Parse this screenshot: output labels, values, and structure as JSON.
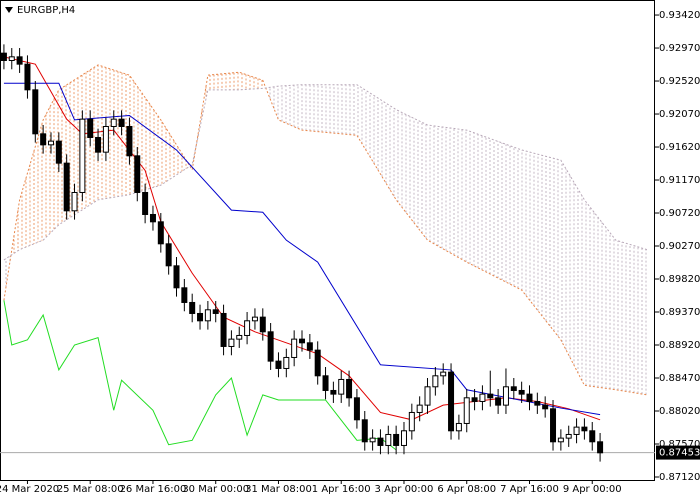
{
  "chart_data": {
    "type": "candlestick",
    "title": "EURGBP,H4",
    "xlim": [
      -0.5,
      83
    ],
    "ylim": [
      0.87079,
      0.93625
    ],
    "xticks": [
      {
        "value": 3,
        "label": "24 Mar 2020"
      },
      {
        "value": 11,
        "label": "25 Mar 08:00"
      },
      {
        "value": 19,
        "label": "26 Mar 16:00"
      },
      {
        "value": 27,
        "label": "30 Mar 00:00"
      },
      {
        "value": 35,
        "label": "31 Mar 08:00"
      },
      {
        "value": 43,
        "label": "1 Apr 16:00"
      },
      {
        "value": 51,
        "label": "3 Apr 00:00"
      },
      {
        "value": 59,
        "label": "6 Apr 08:00"
      },
      {
        "value": 67,
        "label": "7 Apr 16:00"
      },
      {
        "value": 75,
        "label": "9 Apr 00:00"
      }
    ],
    "yticks": [
      {
        "value": 0.9342,
        "label": "0.93420"
      },
      {
        "value": 0.9297,
        "label": "0.92970"
      },
      {
        "value": 0.9252,
        "label": "0.92520"
      },
      {
        "value": 0.9207,
        "label": "0.92070"
      },
      {
        "value": 0.9162,
        "label": "0.91620"
      },
      {
        "value": 0.9117,
        "label": "0.91170"
      },
      {
        "value": 0.9072,
        "label": "0.90720"
      },
      {
        "value": 0.9027,
        "label": "0.90270"
      },
      {
        "value": 0.8982,
        "label": "0.89820"
      },
      {
        "value": 0.8937,
        "label": "0.89370"
      },
      {
        "value": 0.8892,
        "label": "0.88920"
      },
      {
        "value": 0.8847,
        "label": "0.88470"
      },
      {
        "value": 0.8802,
        "label": "0.88020"
      },
      {
        "value": 0.8757,
        "label": "0.87570"
      },
      {
        "value": 0.8712,
        "label": "0.87120"
      }
    ],
    "last_price": 0.87453,
    "bull_color": "#ffffff",
    "bear_color": "#000000",
    "open": [
      0.929,
      0.928,
      0.9285,
      0.9275,
      0.924,
      0.918,
      0.9165,
      0.917,
      0.914,
      0.9075,
      0.91,
      0.92,
      0.9175,
      0.9155,
      0.919,
      0.92,
      0.919,
      0.915,
      0.91,
      0.907,
      0.906,
      0.903,
      0.9,
      0.897,
      0.895,
      0.8935,
      0.8925,
      0.894,
      0.8935,
      0.889,
      0.89,
      0.8905,
      0.8925,
      0.893,
      0.891,
      0.887,
      0.886,
      0.8875,
      0.89,
      0.8895,
      0.8885,
      0.885,
      0.883,
      0.8825,
      0.8845,
      0.882,
      0.879,
      0.876,
      0.8765,
      0.8755,
      0.877,
      0.8755,
      0.8775,
      0.88,
      0.881,
      0.8835,
      0.885,
      0.8855,
      0.8775,
      0.8785,
      0.882,
      0.8815,
      0.8825,
      0.882,
      0.881,
      0.8835,
      0.883,
      0.8825,
      0.8815,
      0.881,
      0.8805,
      0.876,
      0.8765,
      0.877,
      0.878,
      0.8775,
      0.876
    ],
    "high": [
      0.9302,
      0.9297,
      0.9297,
      0.9287,
      0.9252,
      0.9192,
      0.9182,
      0.9182,
      0.9152,
      0.9112,
      0.9212,
      0.9212,
      0.9187,
      0.9202,
      0.9212,
      0.9212,
      0.9202,
      0.9162,
      0.9112,
      0.9082,
      0.9072,
      0.9042,
      0.9012,
      0.8982,
      0.8962,
      0.8947,
      0.8952,
      0.8952,
      0.8947,
      0.8912,
      0.8917,
      0.8937,
      0.8942,
      0.8942,
      0.8922,
      0.8882,
      0.8887,
      0.8912,
      0.8912,
      0.8907,
      0.8897,
      0.8862,
      0.8842,
      0.8857,
      0.8857,
      0.8832,
      0.8802,
      0.8777,
      0.8777,
      0.8782,
      0.8782,
      0.8787,
      0.8812,
      0.8822,
      0.8847,
      0.8862,
      0.8867,
      0.8867,
      0.8797,
      0.8832,
      0.8832,
      0.8837,
      0.8857,
      0.8832,
      0.886,
      0.8847,
      0.8842,
      0.8837,
      0.8827,
      0.8822,
      0.8817,
      0.8777,
      0.8782,
      0.8792,
      0.8792,
      0.8787,
      0.8772
    ],
    "low": [
      0.9268,
      0.9268,
      0.9263,
      0.9228,
      0.9168,
      0.9153,
      0.9153,
      0.9128,
      0.9063,
      0.9063,
      0.9088,
      0.9163,
      0.9143,
      0.9143,
      0.9178,
      0.9178,
      0.9138,
      0.9088,
      0.9058,
      0.9048,
      0.9018,
      0.8988,
      0.8958,
      0.8938,
      0.8923,
      0.8913,
      0.8913,
      0.8923,
      0.8878,
      0.8878,
      0.8888,
      0.8893,
      0.8913,
      0.8898,
      0.8858,
      0.8848,
      0.8848,
      0.8863,
      0.8883,
      0.8873,
      0.8838,
      0.8818,
      0.8813,
      0.8813,
      0.8808,
      0.8778,
      0.8748,
      0.8748,
      0.8743,
      0.8743,
      0.8743,
      0.8743,
      0.8763,
      0.8788,
      0.8798,
      0.8823,
      0.8838,
      0.8763,
      0.8763,
      0.8773,
      0.8803,
      0.8803,
      0.8808,
      0.8798,
      0.8798,
      0.8818,
      0.8813,
      0.8803,
      0.8798,
      0.8793,
      0.8748,
      0.8748,
      0.8753,
      0.8758,
      0.8763,
      0.8748,
      0.8733
    ],
    "close": [
      0.928,
      0.9285,
      0.9275,
      0.924,
      0.918,
      0.9165,
      0.917,
      0.914,
      0.9075,
      0.91,
      0.92,
      0.9175,
      0.9155,
      0.919,
      0.92,
      0.919,
      0.915,
      0.91,
      0.907,
      0.906,
      0.903,
      0.9,
      0.897,
      0.895,
      0.8935,
      0.8925,
      0.894,
      0.8935,
      0.889,
      0.89,
      0.8905,
      0.8925,
      0.893,
      0.891,
      0.887,
      0.886,
      0.8875,
      0.89,
      0.8895,
      0.8885,
      0.885,
      0.883,
      0.8825,
      0.8845,
      0.882,
      0.879,
      0.876,
      0.8765,
      0.8755,
      0.877,
      0.8755,
      0.8775,
      0.88,
      0.881,
      0.8835,
      0.885,
      0.8855,
      0.8775,
      0.8785,
      0.882,
      0.8815,
      0.8825,
      0.882,
      0.881,
      0.8835,
      0.883,
      0.8825,
      0.8815,
      0.881,
      0.8805,
      0.876,
      0.8765,
      0.877,
      0.878,
      0.8775,
      0.876,
      0.8745
    ],
    "cloud": {
      "colors": [
        "#e8864a",
        "#b8a8b8"
      ]
    },
    "series": [
      {
        "color": "#e8864a",
        "x": [
          0,
          2,
          5,
          7,
          12,
          16,
          20,
          24,
          26,
          30,
          33,
          35,
          38,
          45,
          50,
          54,
          59,
          66,
          71,
          74,
          78,
          82
        ],
        "values": [
          0.8953,
          0.909,
          0.9199,
          0.924,
          0.9274,
          0.926,
          0.9199,
          0.9131,
          0.926,
          0.9264,
          0.9253,
          0.9199,
          0.9185,
          0.9178,
          0.909,
          0.9035,
          0.9005,
          0.8967,
          0.8899,
          0.8837,
          0.8831,
          0.8824
        ],
        "dash": true
      },
      {
        "color": "#b8a8b8",
        "x": [
          0,
          2,
          5,
          7,
          12,
          16,
          20,
          24,
          26,
          30,
          33,
          35,
          38,
          45,
          50,
          54,
          59,
          66,
          71,
          74,
          78,
          82
        ],
        "values": [
          0.9008,
          0.9022,
          0.9035,
          0.9056,
          0.909,
          0.9097,
          0.911,
          0.9138,
          0.924,
          0.924,
          0.9242,
          0.9245,
          0.9247,
          0.9247,
          0.9213,
          0.9192,
          0.9185,
          0.9158,
          0.9144,
          0.909,
          0.9035,
          0.9022
        ],
        "dash": true
      },
      {
        "color": "#e00000",
        "x": [
          0,
          4,
          8,
          10,
          14,
          18,
          20,
          24,
          28,
          32,
          36,
          40,
          44,
          48,
          52,
          56,
          60,
          64,
          68,
          72,
          76
        ],
        "values": [
          0.9285,
          0.9275,
          0.92,
          0.918,
          0.9185,
          0.913,
          0.906,
          0.899,
          0.893,
          0.891,
          0.8895,
          0.888,
          0.885,
          0.88,
          0.879,
          0.881,
          0.8815,
          0.882,
          0.8815,
          0.8805,
          0.879
        ]
      },
      {
        "color": "#0000cc",
        "x": [
          0,
          7,
          9,
          16,
          22,
          29,
          33,
          36,
          40,
          48,
          57,
          59,
          71,
          76
        ],
        "values": [
          0.9249,
          0.9249,
          0.9199,
          0.9205,
          0.9158,
          0.9076,
          0.9073,
          0.9035,
          0.9005,
          0.8865,
          0.8858,
          0.8831,
          0.8806,
          0.8797
        ]
      },
      {
        "color": "#22dd22",
        "x": [
          0,
          1,
          3,
          5,
          7,
          9,
          12,
          14,
          15,
          19,
          21,
          24,
          27,
          29,
          31,
          33,
          35,
          39,
          41,
          45,
          48,
          50
        ],
        "values": [
          0.8953,
          0.8892,
          0.8899,
          0.8933,
          0.8858,
          0.8892,
          0.8902,
          0.8803,
          0.8844,
          0.8803,
          0.8756,
          0.8762,
          0.8824,
          0.8847,
          0.8769,
          0.8824,
          0.8817,
          0.8817,
          0.8817,
          0.8762,
          0.8765,
          0.8749
        ]
      }
    ]
  }
}
